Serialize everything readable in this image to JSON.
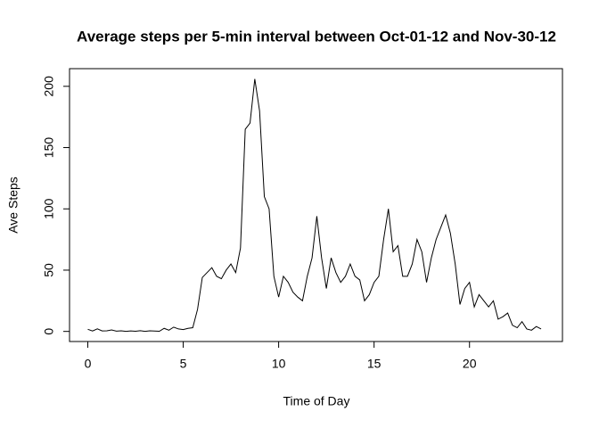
{
  "chart_data": {
    "type": "line",
    "title": "Average steps per 5-min interval between Oct-01-12 and Nov-30-12",
    "x_label": "Time of Day",
    "y_label": "Ave Steps",
    "x": [
      0,
      0.25,
      0.5,
      0.75,
      1,
      1.25,
      1.5,
      1.75,
      2,
      2.25,
      2.5,
      2.75,
      3,
      3.25,
      3.5,
      3.75,
      4,
      4.25,
      4.5,
      4.75,
      5,
      5.25,
      5.5,
      5.75,
      6,
      6.25,
      6.5,
      6.75,
      7,
      7.25,
      7.5,
      7.75,
      8,
      8.25,
      8.5,
      8.75,
      9,
      9.25,
      9.5,
      9.75,
      10,
      10.25,
      10.5,
      10.75,
      11,
      11.25,
      11.5,
      11.75,
      12,
      12.25,
      12.5,
      12.75,
      13,
      13.25,
      13.5,
      13.75,
      14,
      14.25,
      14.5,
      14.75,
      15,
      15.25,
      15.5,
      15.75,
      16,
      16.25,
      16.5,
      16.75,
      17,
      17.25,
      17.5,
      17.75,
      18,
      18.25,
      18.5,
      18.75,
      19,
      19.25,
      19.5,
      19.75,
      20,
      20.25,
      20.5,
      20.75,
      21,
      21.25,
      21.5,
      21.75,
      22,
      22.25,
      22.5,
      22.75,
      23,
      23.25,
      23.5,
      23.75
    ],
    "series": [
      {
        "name": "Ave Steps",
        "color": "#000000",
        "values": [
          1.7,
          0.3,
          2.1,
          0.4,
          0.5,
          1.2,
          0.2,
          0.5,
          0,
          0.4,
          0.1,
          0.6,
          0,
          0.5,
          0.3,
          0.1,
          2.5,
          1,
          3.5,
          2,
          1.5,
          2.5,
          3,
          18,
          44,
          48,
          52,
          45,
          43,
          50,
          55,
          48,
          68,
          165,
          170,
          206,
          180,
          110,
          100,
          45,
          28,
          45,
          40,
          32,
          28,
          25,
          45,
          60,
          94,
          60,
          35,
          60,
          48,
          40,
          45,
          55,
          45,
          42,
          25,
          30,
          40,
          45,
          75,
          100,
          65,
          70,
          45,
          45,
          55,
          75,
          65,
          40,
          60,
          75,
          85,
          95,
          80,
          55,
          22,
          35,
          40,
          20,
          30,
          25,
          20,
          25,
          10,
          12,
          15,
          5,
          3,
          8,
          2,
          1,
          4,
          2
        ]
      }
    ],
    "xlim": [
      -0.957,
      24.87
    ],
    "ylim": [
      -8.24,
      214.41
    ],
    "xticks": [
      0,
      5,
      10,
      15,
      20
    ],
    "yticks": [
      0,
      50,
      100,
      150,
      200
    ]
  }
}
